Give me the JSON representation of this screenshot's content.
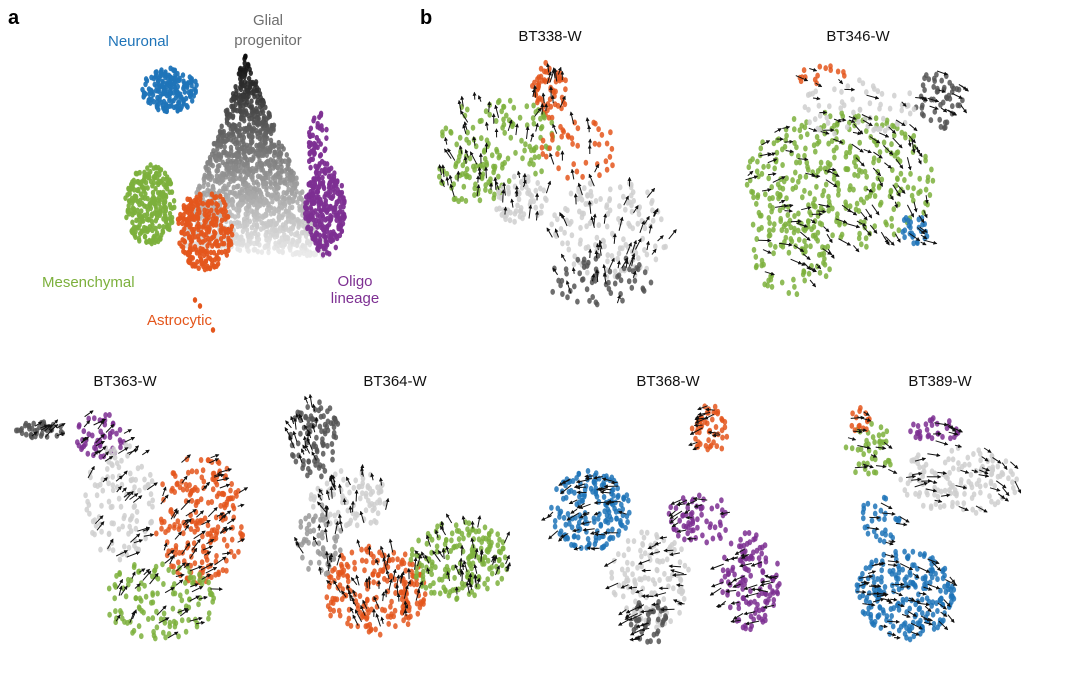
{
  "panel_letters": {
    "a": "a",
    "b": "b"
  },
  "colors": {
    "Neuronal": "#1f74b8",
    "Glial progenitor": "#6e6e6e",
    "Mesenchymal": "#7cb03c",
    "Astrocytic": "#e4561c",
    "Oligo lineage": "#7d2f92",
    "unassigned": "#cfcfcf",
    "arrow": "#111111"
  },
  "chart_data": [
    {
      "type": "scatter",
      "panel": "a",
      "title": "",
      "states": {
        "neuronal": "Neuronal",
        "glial_line1": "Glial",
        "glial_line2": "progenitor",
        "mesenchymal": "Mesenchymal",
        "astrocytic": "Astrocytic",
        "oligo_line1": "Oligo",
        "oligo_line2": "lineage"
      },
      "grid": false
    },
    {
      "type": "scatter",
      "panel": "b",
      "title": "BT338-W",
      "overlay": "velocity arrows",
      "grid": false
    },
    {
      "type": "scatter",
      "panel": "b",
      "title": "BT346-W",
      "overlay": "velocity arrows",
      "grid": false
    },
    {
      "type": "scatter",
      "panel": "b",
      "title": "BT363-W",
      "overlay": "velocity arrows",
      "grid": false
    },
    {
      "type": "scatter",
      "panel": "b",
      "title": "BT364-W",
      "overlay": "velocity arrows",
      "grid": false
    },
    {
      "type": "scatter",
      "panel": "b",
      "title": "BT368-W",
      "overlay": "velocity arrows",
      "grid": false
    },
    {
      "type": "scatter",
      "panel": "b",
      "title": "BT389-W",
      "overlay": "velocity arrows",
      "grid": false
    }
  ]
}
